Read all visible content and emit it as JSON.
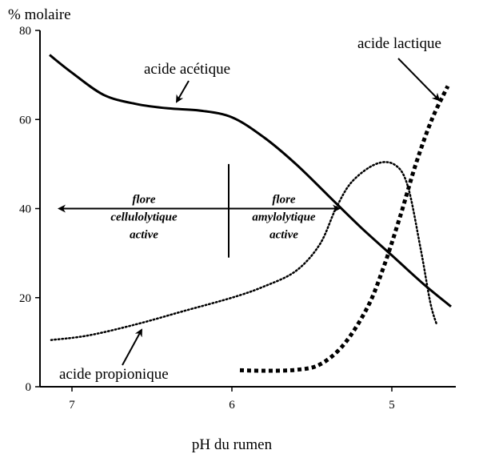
{
  "chart_data": {
    "type": "line",
    "ylabel": "% molaire",
    "xlabel": "pH du rumen",
    "xlim": [
      7.2,
      4.6
    ],
    "ylim": [
      0,
      80
    ],
    "x_reversed": true,
    "x_ticks": [
      {
        "value": 7,
        "label": "7"
      },
      {
        "value": 6,
        "label": "6"
      },
      {
        "value": 5,
        "label": "5"
      }
    ],
    "y_ticks": [
      {
        "value": 0,
        "label": "0"
      },
      {
        "value": 20,
        "label": "20"
      },
      {
        "value": 40,
        "label": "40"
      },
      {
        "value": 60,
        "label": "60"
      },
      {
        "value": 80,
        "label": "80"
      }
    ],
    "series": [
      {
        "name": "acide acétique",
        "style": "solid",
        "points": [
          [
            7.14,
            74.5
          ],
          [
            7.0,
            70.5
          ],
          [
            6.8,
            65.5
          ],
          [
            6.6,
            63.5
          ],
          [
            6.4,
            62.5
          ],
          [
            6.2,
            62.0
          ],
          [
            6.0,
            60.5
          ],
          [
            5.8,
            56.0
          ],
          [
            5.6,
            50.0
          ],
          [
            5.4,
            43.0
          ],
          [
            5.2,
            36.0
          ],
          [
            5.0,
            29.5
          ],
          [
            4.8,
            23.0
          ],
          [
            4.63,
            18.0
          ]
        ]
      },
      {
        "name": "acide propionique",
        "style": "dotted",
        "points": [
          [
            7.13,
            10.5
          ],
          [
            6.9,
            11.5
          ],
          [
            6.6,
            14.0
          ],
          [
            6.3,
            17.0
          ],
          [
            6.0,
            20.0
          ],
          [
            5.8,
            22.5
          ],
          [
            5.6,
            26.0
          ],
          [
            5.45,
            32.0
          ],
          [
            5.35,
            40.0
          ],
          [
            5.25,
            46.0
          ],
          [
            5.1,
            50.0
          ],
          [
            4.98,
            49.8
          ],
          [
            4.9,
            45.0
          ],
          [
            4.82,
            31.0
          ],
          [
            4.76,
            19.0
          ],
          [
            4.72,
            14.0
          ]
        ]
      },
      {
        "name": "acide lactique",
        "style": "dashed",
        "points": [
          [
            5.95,
            3.7
          ],
          [
            5.8,
            3.6
          ],
          [
            5.6,
            3.8
          ],
          [
            5.45,
            5.0
          ],
          [
            5.3,
            9.5
          ],
          [
            5.15,
            18.0
          ],
          [
            5.05,
            27.0
          ],
          [
            4.95,
            38.0
          ],
          [
            4.85,
            50.0
          ],
          [
            4.75,
            60.0
          ],
          [
            4.65,
            67.5
          ]
        ]
      }
    ],
    "annotations": {
      "acetic_label": "acide acétique",
      "lactic_label": "acide lactique",
      "propionic_label": "acide propionique"
    },
    "zones": [
      {
        "line1": "flore",
        "line2": "cellulolytique",
        "line3": "active"
      },
      {
        "line1": "flore",
        "line2": "amylolytique",
        "line3": "active"
      }
    ],
    "zone_divider_ph": 6.02,
    "zone_arrow_y": 40,
    "zone_arrow_range": [
      7.08,
      5.33
    ]
  }
}
